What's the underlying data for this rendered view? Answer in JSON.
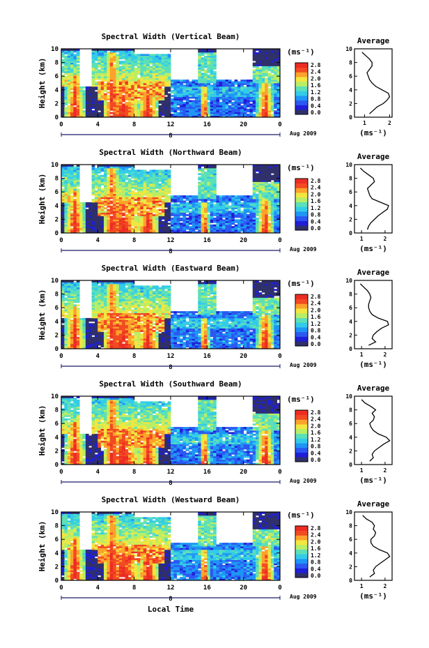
{
  "figure": {
    "xlabel": "Local Time",
    "date_label": "Aug 2009",
    "day_label": "8",
    "colorbar_unit": "(ms⁻¹)",
    "profile_title": "Average",
    "profile_xlabel": "(ms⁻¹)"
  },
  "colorscale": {
    "ticks": [
      "0.0",
      "0.4",
      "0.8",
      "1.2",
      "1.6",
      "2.0",
      "2.4",
      "2.8"
    ],
    "colors": [
      "#30306a",
      "#1f1fd8",
      "#2b58f2",
      "#1f95f5",
      "#33cce8",
      "#5ce0b8",
      "#b8ee66",
      "#f2e640",
      "#fca22c",
      "#f24a22",
      "#ec2d24"
    ]
  },
  "chart_data": [
    {
      "type": "heatmap",
      "title": "Spectral Width (Vertical Beam)",
      "ylabel": "Height (km)",
      "xlabel": "",
      "x_ticks": [
        "0",
        "4",
        "8",
        "12",
        "16",
        "20",
        "0"
      ],
      "y_ticks": [
        "0",
        "2",
        "4",
        "6",
        "8",
        "10"
      ],
      "xlim": [
        0,
        24
      ],
      "ylim": [
        0,
        10
      ],
      "zlim": [
        0,
        2.8
      ],
      "profile": {
        "type": "line",
        "title": "Average",
        "x_ticks": [
          "1",
          "2"
        ],
        "xlim": [
          0.6,
          2.1
        ],
        "height": [
          0.5,
          1.0,
          1.5,
          2.0,
          2.5,
          3.0,
          3.5,
          4.0,
          4.5,
          5.0,
          5.5,
          6.0,
          6.5,
          7.0,
          7.5,
          8.0,
          8.5,
          9.0,
          9.5
        ],
        "values": [
          1.2,
          1.35,
          1.5,
          1.75,
          1.9,
          2.0,
          1.95,
          1.7,
          1.45,
          1.3,
          1.2,
          1.15,
          1.1,
          1.2,
          1.3,
          1.3,
          1.2,
          1.05,
          0.9
        ]
      }
    },
    {
      "type": "heatmap",
      "title": "Spectral Width (Northward Beam)",
      "ylabel": "Height (km)",
      "xlabel": "",
      "x_ticks": [
        "0",
        "4",
        "8",
        "12",
        "16",
        "20",
        "0"
      ],
      "y_ticks": [
        "0",
        "2",
        "4",
        "6",
        "8",
        "10"
      ],
      "xlim": [
        0,
        24
      ],
      "ylim": [
        0,
        10
      ],
      "zlim": [
        0,
        2.8
      ],
      "profile": {
        "type": "line",
        "title": "Average",
        "x_ticks": [
          "1",
          "2"
        ],
        "xlim": [
          0.7,
          2.3
        ],
        "height": [
          0.5,
          1.0,
          1.5,
          2.0,
          2.5,
          3.0,
          3.5,
          4.0,
          4.5,
          5.0,
          5.5,
          6.0,
          6.5,
          7.0,
          7.5,
          8.0,
          8.5,
          9.0,
          9.5
        ],
        "values": [
          1.25,
          1.3,
          1.4,
          1.55,
          1.7,
          1.9,
          2.1,
          2.15,
          1.8,
          1.45,
          1.35,
          1.3,
          1.25,
          1.4,
          1.55,
          1.5,
          1.3,
          1.1,
          0.95
        ]
      }
    },
    {
      "type": "heatmap",
      "title": "Spectral Width (Eastward Beam)",
      "ylabel": "Height (km)",
      "xlabel": "",
      "x_ticks": [
        "0",
        "4",
        "8",
        "12",
        "16",
        "20",
        "0"
      ],
      "y_ticks": [
        "0",
        "2",
        "4",
        "6",
        "8",
        "10"
      ],
      "xlim": [
        0,
        24
      ],
      "ylim": [
        0,
        10
      ],
      "zlim": [
        0,
        2.8
      ],
      "profile": {
        "type": "line",
        "title": "Average",
        "x_ticks": [
          "1",
          "2"
        ],
        "xlim": [
          0.7,
          2.3
        ],
        "height": [
          0.5,
          1.0,
          1.5,
          2.0,
          2.5,
          3.0,
          3.5,
          4.0,
          4.5,
          5.0,
          5.5,
          6.0,
          6.5,
          7.0,
          7.5,
          8.0,
          8.5,
          9.0,
          9.5
        ],
        "values": [
          1.3,
          1.6,
          1.45,
          1.5,
          1.65,
          1.85,
          2.15,
          2.1,
          1.7,
          1.45,
          1.35,
          1.3,
          1.3,
          1.35,
          1.4,
          1.35,
          1.25,
          1.1,
          0.95
        ]
      }
    },
    {
      "type": "heatmap",
      "title": "Spectral Width (Southward Beam)",
      "ylabel": "Height (km)",
      "xlabel": "",
      "x_ticks": [
        "0",
        "4",
        "8",
        "12",
        "16",
        "20",
        "0"
      ],
      "y_ticks": [
        "0",
        "2",
        "4",
        "6",
        "8",
        "10"
      ],
      "xlim": [
        0,
        24
      ],
      "ylim": [
        0,
        10
      ],
      "zlim": [
        0,
        2.8
      ],
      "profile": {
        "type": "line",
        "title": "Average",
        "x_ticks": [
          "1",
          "2"
        ],
        "xlim": [
          0.7,
          2.3
        ],
        "height": [
          0.5,
          1.0,
          1.5,
          2.0,
          2.5,
          3.0,
          3.5,
          4.0,
          4.5,
          5.0,
          5.5,
          6.0,
          6.5,
          7.0,
          7.5,
          8.0,
          8.5,
          9.0,
          9.5
        ],
        "values": [
          1.35,
          1.5,
          1.45,
          1.55,
          1.75,
          1.95,
          2.2,
          2.05,
          1.7,
          1.5,
          1.4,
          1.35,
          1.5,
          1.55,
          1.45,
          1.6,
          1.4,
          1.15,
          1.0
        ]
      }
    },
    {
      "type": "heatmap",
      "title": "Spectral Width (Westward Beam)",
      "ylabel": "Height (km)",
      "xlabel": "Local Time",
      "x_ticks": [
        "0",
        "4",
        "8",
        "12",
        "16",
        "20",
        "0"
      ],
      "y_ticks": [
        "0",
        "2",
        "4",
        "6",
        "8",
        "10"
      ],
      "xlim": [
        0,
        24
      ],
      "ylim": [
        0,
        10
      ],
      "zlim": [
        0,
        2.8
      ],
      "profile": {
        "type": "line",
        "title": "Average",
        "x_ticks": [
          "1",
          "2"
        ],
        "xlim": [
          0.7,
          2.3
        ],
        "height": [
          0.5,
          1.0,
          1.5,
          2.0,
          2.5,
          3.0,
          3.5,
          4.0,
          4.5,
          5.0,
          5.5,
          6.0,
          6.5,
          7.0,
          7.5,
          8.0,
          8.5,
          9.0,
          9.5
        ],
        "values": [
          1.35,
          1.55,
          1.5,
          1.6,
          1.8,
          2.0,
          2.2,
          2.1,
          1.75,
          1.5,
          1.4,
          1.4,
          1.55,
          1.6,
          1.5,
          1.55,
          1.45,
          1.2,
          1.05
        ]
      }
    }
  ]
}
